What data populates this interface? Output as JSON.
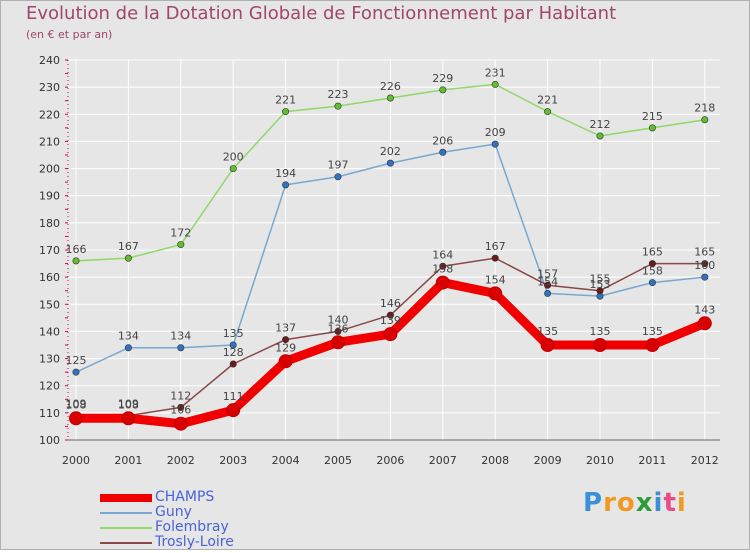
{
  "title": "Evolution de la Dotation Globale de Fonctionnement par Habitant",
  "subtitle": "(en € et par an)",
  "colors": {
    "title": "#a0466e",
    "legend_text": "#4a63d6",
    "grid": "#ffffff",
    "axis_red": "#d2004b"
  },
  "logo": {
    "letters": [
      "P",
      "r",
      "o",
      "x",
      "i",
      "t",
      "i"
    ],
    "colors": [
      "#3b8fd6",
      "#f29a1f",
      "#f29a1f",
      "#2e9c3a",
      "#3b8fd6",
      "#e84a8a",
      "#f29a1f"
    ]
  },
  "chart_data": {
    "type": "line",
    "title": "Evolution de la Dotation Globale de Fonctionnement par Habitant",
    "subtitle": "(en € et par an)",
    "xlabel": "",
    "ylabel": "",
    "ylim": [
      100,
      240
    ],
    "yticks": [
      100,
      110,
      120,
      130,
      140,
      150,
      160,
      170,
      180,
      190,
      200,
      210,
      220,
      230,
      240
    ],
    "categories": [
      "2000",
      "2001",
      "2002",
      "2003",
      "2004",
      "2005",
      "2006",
      "2007",
      "2008",
      "2009",
      "2010",
      "2011",
      "2012"
    ],
    "grid": true,
    "legend_position": "bottom-left",
    "series": [
      {
        "name": "CHAMPS",
        "color": "#f00000",
        "marker": "#d80000",
        "thick": true,
        "values": [
          108,
          108,
          106,
          111,
          129,
          136,
          139,
          158,
          154,
          135,
          135,
          135,
          143
        ]
      },
      {
        "name": "Guny",
        "color": "#78a8cf",
        "marker": "#2f74c4",
        "thick": false,
        "values": [
          125,
          134,
          134,
          135,
          194,
          197,
          202,
          206,
          209,
          154,
          153,
          158,
          160
        ]
      },
      {
        "name": "Folembray",
        "color": "#90d868",
        "marker": "#5fbf2f",
        "thick": false,
        "values": [
          166,
          167,
          172,
          200,
          221,
          223,
          226,
          229,
          231,
          221,
          212,
          215,
          218
        ]
      },
      {
        "name": "Trosly-Loire",
        "color": "#8a4848",
        "marker": "#6a1c1c",
        "thick": false,
        "values": [
          109,
          109,
          112,
          128,
          137,
          140,
          146,
          164,
          167,
          157,
          155,
          165,
          165
        ]
      }
    ],
    "legend": [
      "CHAMPS",
      "Guny",
      "Folembray",
      "Trosly-Loire"
    ]
  }
}
